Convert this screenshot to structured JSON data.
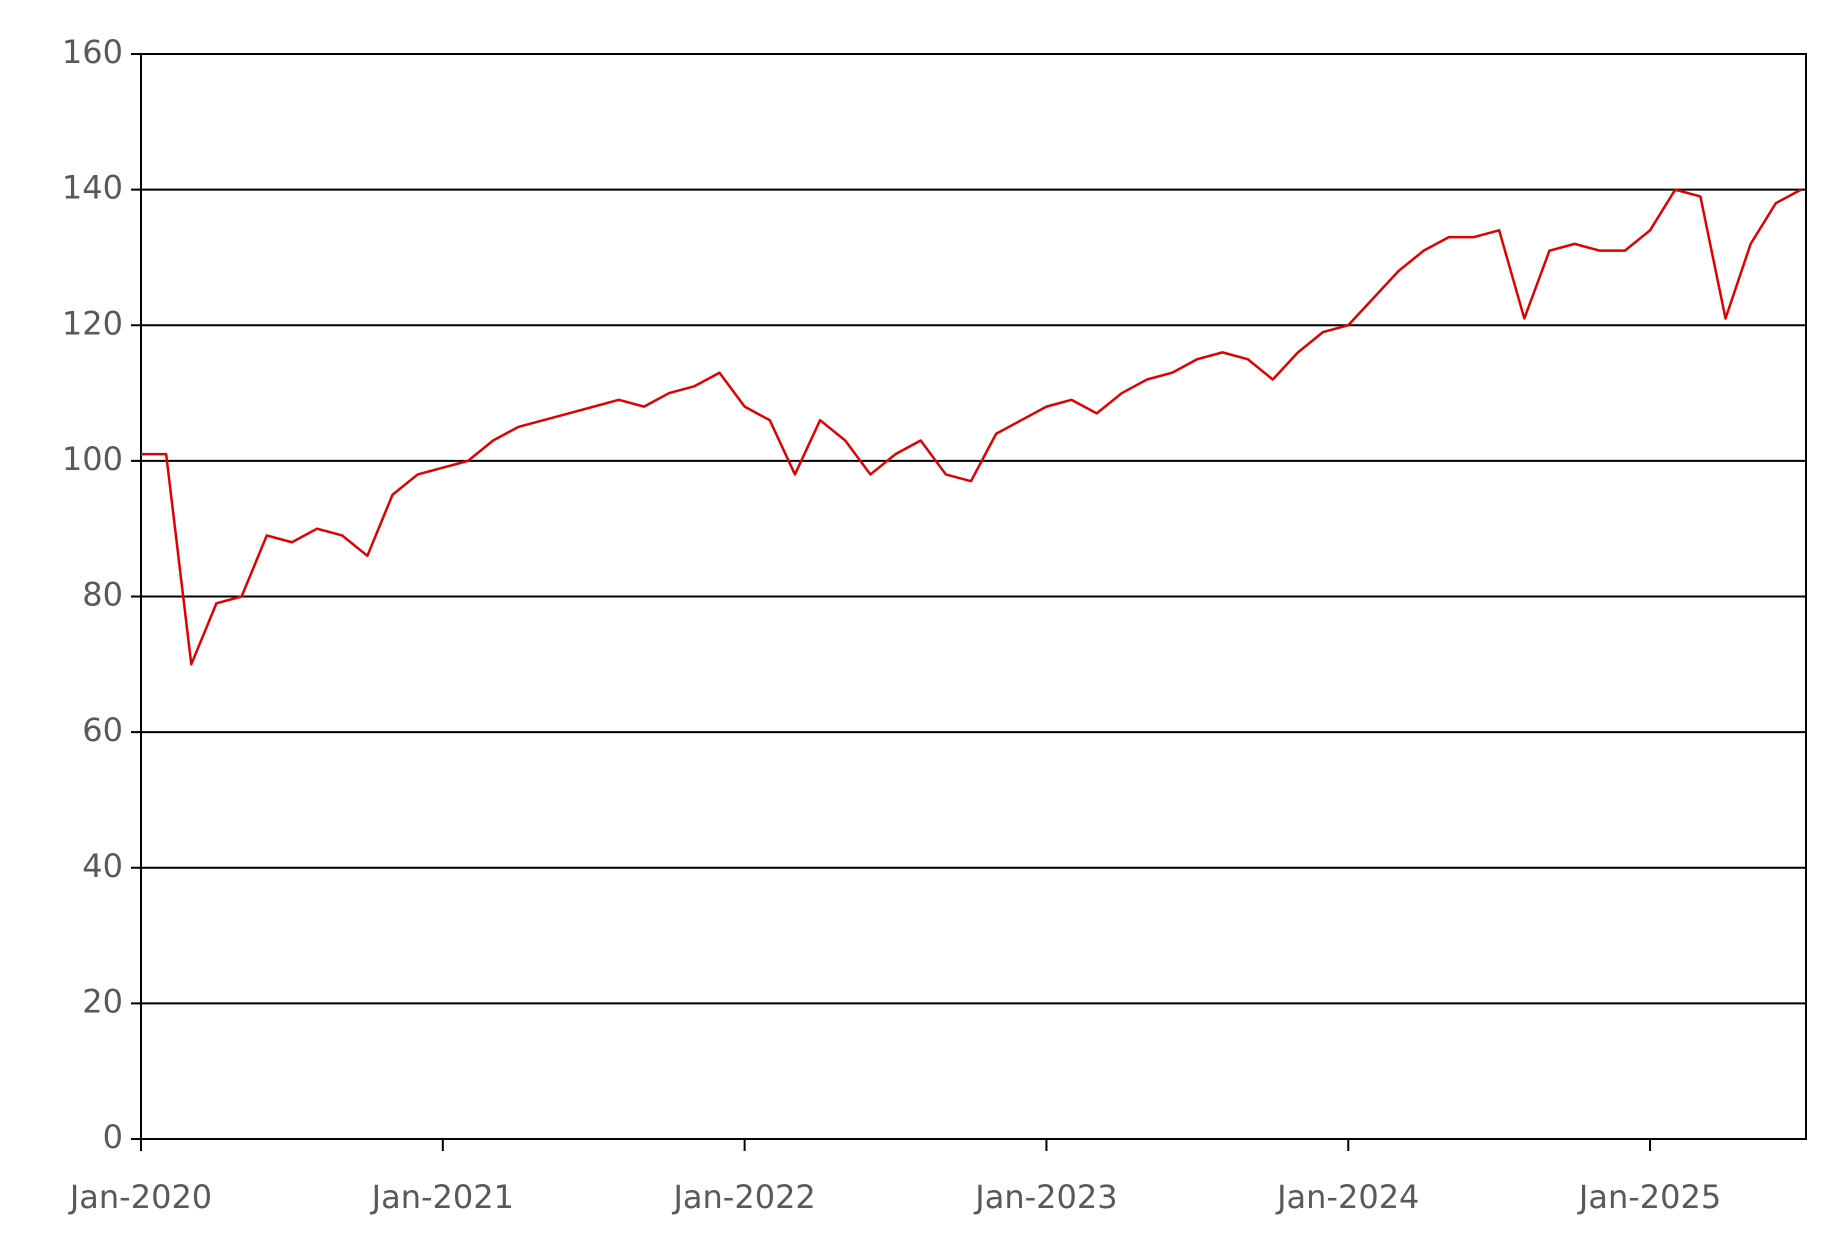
{
  "chart_data": {
    "type": "line",
    "x": [
      "Jan-2020",
      "Feb-2020",
      "Mar-2020",
      "Apr-2020",
      "May-2020",
      "Jun-2020",
      "Jul-2020",
      "Aug-2020",
      "Sep-2020",
      "Oct-2020",
      "Nov-2020",
      "Dec-2020",
      "Jan-2021",
      "Feb-2021",
      "Mar-2021",
      "Apr-2021",
      "May-2021",
      "Jun-2021",
      "Jul-2021",
      "Aug-2021",
      "Sep-2021",
      "Oct-2021",
      "Nov-2021",
      "Dec-2021",
      "Jan-2022",
      "Feb-2022",
      "Mar-2022",
      "Apr-2022",
      "May-2022",
      "Jun-2022",
      "Jul-2022",
      "Aug-2022",
      "Sep-2022",
      "Oct-2022",
      "Nov-2022",
      "Dec-2022",
      "Jan-2023",
      "Feb-2023",
      "Mar-2023",
      "Apr-2023",
      "May-2023",
      "Jun-2023",
      "Jul-2023",
      "Aug-2023",
      "Sep-2023",
      "Oct-2023",
      "Nov-2023",
      "Dec-2023",
      "Jan-2024",
      "Feb-2024",
      "Mar-2024",
      "Apr-2024",
      "May-2024",
      "Jun-2024",
      "Jul-2024",
      "Aug-2024",
      "Sep-2024",
      "Oct-2024",
      "Nov-2024",
      "Dec-2024",
      "Jan-2025",
      "Feb-2025",
      "Mar-2025",
      "Apr-2025",
      "May-2025",
      "Jun-2025",
      "Jul-2025"
    ],
    "series": [
      {
        "color": "#e00000",
        "values": [
          101,
          101,
          70,
          79,
          80,
          89,
          88,
          90,
          89,
          86,
          95,
          98,
          99,
          100,
          103,
          105,
          106,
          107,
          108,
          109,
          108,
          110,
          111,
          113,
          108,
          106,
          98,
          106,
          103,
          98,
          101,
          103,
          98,
          97,
          104,
          106,
          108,
          109,
          107,
          110,
          112,
          113,
          115,
          116,
          115,
          112,
          116,
          119,
          120,
          124,
          128,
          131,
          133,
          133,
          134,
          121,
          131,
          132,
          131,
          131,
          134,
          140,
          139,
          121,
          132,
          138,
          140
        ]
      }
    ],
    "xlim": [
      "Jan-2020",
      "Jul-2025"
    ],
    "xticks": [
      "Jan-2020",
      "Jan-2021",
      "Jan-2022",
      "Jan-2023",
      "Jan-2024",
      "Jan-2025"
    ],
    "ylim": [
      0,
      160
    ],
    "yticks": [
      0,
      20,
      40,
      60,
      80,
      100,
      120,
      140,
      160
    ],
    "grid": true
  }
}
